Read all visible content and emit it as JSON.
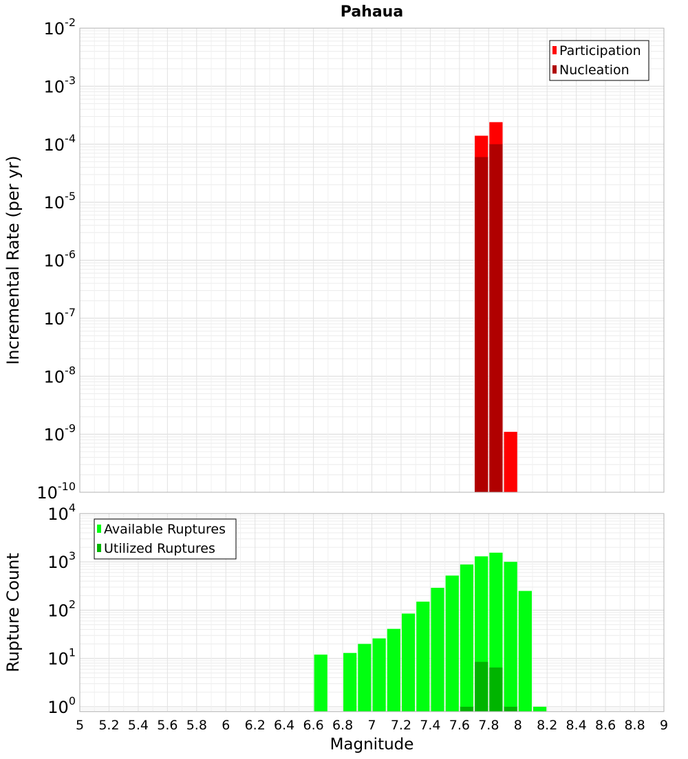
{
  "chart_data": [
    {
      "type": "bar",
      "title": "Pahaua",
      "xlabel": "",
      "ylabel": "Incremental Rate (per yr)",
      "yscale": "log",
      "ylim_exponents": [
        -10,
        -2
      ],
      "y_tick_labels": [
        "10^-10",
        "10^-9",
        "10^-8",
        "10^-7",
        "10^-6",
        "10^-5",
        "10^-4",
        "10^-3",
        "10^-2"
      ],
      "xlim": [
        5,
        9
      ],
      "bin_width": 0.1,
      "grid": true,
      "legend_position": "top-right",
      "series": [
        {
          "name": "Participation",
          "color": "#ff0000",
          "points": [
            {
              "x": 7.75,
              "y": 0.00014
            },
            {
              "x": 7.85,
              "y": 0.00024
            },
            {
              "x": 7.95,
              "y": 1.1e-09
            }
          ]
        },
        {
          "name": "Nucleation",
          "color": "#b00000",
          "points": [
            {
              "x": 7.75,
              "y": 6e-05
            },
            {
              "x": 7.85,
              "y": 0.0001
            }
          ]
        }
      ]
    },
    {
      "type": "bar",
      "title": "",
      "xlabel": "Magnitude",
      "ylabel": "Rupture Count",
      "yscale": "log",
      "ylim_exponents": [
        -0.1,
        4
      ],
      "y_tick_labels": [
        "10^0",
        "10^1",
        "10^2",
        "10^3",
        "10^4"
      ],
      "xlim": [
        5,
        9
      ],
      "x_ticks": [
        "5",
        "5.2",
        "5.4",
        "5.6",
        "5.8",
        "6",
        "6.2",
        "6.4",
        "6.6",
        "6.8",
        "7",
        "7.2",
        "7.4",
        "7.6",
        "7.8",
        "8",
        "8.2",
        "8.4",
        "8.6",
        "8.8",
        "9"
      ],
      "bin_width": 0.1,
      "grid": true,
      "legend_position": "top-left",
      "series": [
        {
          "name": "Available Ruptures",
          "color": "#00ff10",
          "points": [
            {
              "x": 6.65,
              "y": 12
            },
            {
              "x": 6.85,
              "y": 13
            },
            {
              "x": 6.95,
              "y": 20
            },
            {
              "x": 7.05,
              "y": 26
            },
            {
              "x": 7.15,
              "y": 41
            },
            {
              "x": 7.25,
              "y": 85
            },
            {
              "x": 7.35,
              "y": 150
            },
            {
              "x": 7.45,
              "y": 290
            },
            {
              "x": 7.55,
              "y": 520
            },
            {
              "x": 7.65,
              "y": 880
            },
            {
              "x": 7.75,
              "y": 1300
            },
            {
              "x": 7.85,
              "y": 1550
            },
            {
              "x": 7.95,
              "y": 1000
            },
            {
              "x": 8.05,
              "y": 250
            },
            {
              "x": 8.15,
              "y": 1
            }
          ]
        },
        {
          "name": "Utilized Ruptures",
          "color": "#00b400",
          "points": [
            {
              "x": 7.65,
              "y": 1
            },
            {
              "x": 7.75,
              "y": 8.5
            },
            {
              "x": 7.85,
              "y": 6.5
            },
            {
              "x": 7.95,
              "y": 1
            }
          ]
        }
      ]
    }
  ]
}
